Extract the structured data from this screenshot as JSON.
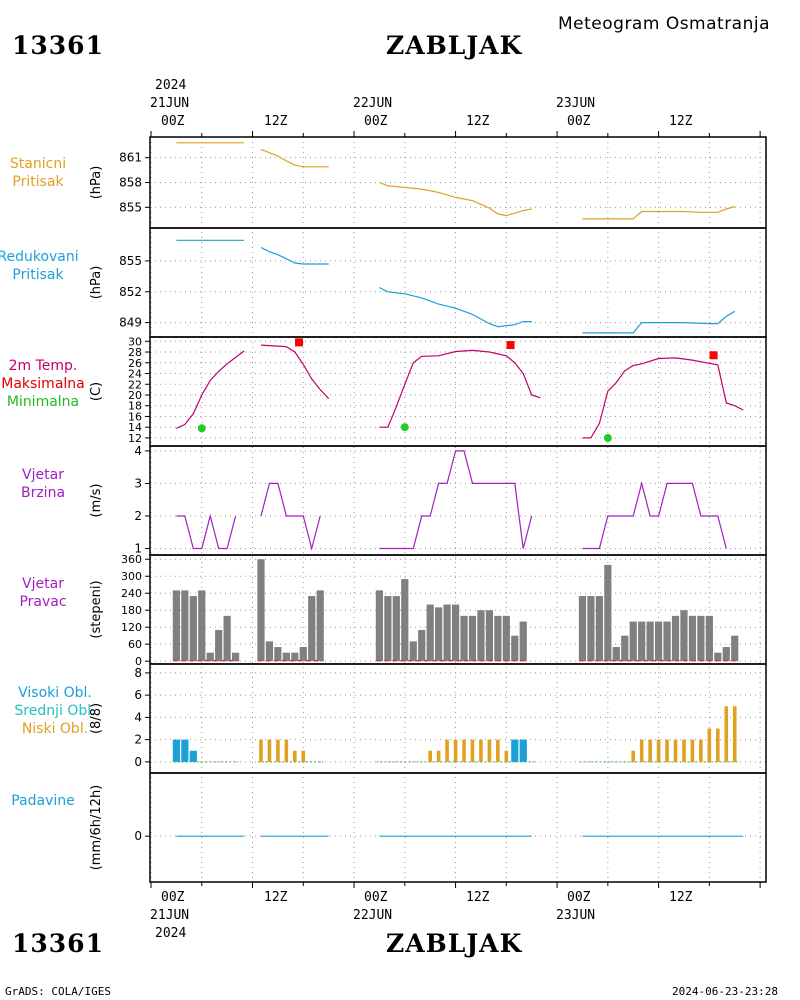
{
  "header": {
    "station_id": "13361",
    "station_name": "ZABLJAK",
    "subtitle": "Meteogram Osmatranja"
  },
  "footer": {
    "station_id": "13361",
    "station_name": "ZABLJAK",
    "credit": "GrADS: COLA/IGES",
    "timestamp": "2024-06-23-23:28"
  },
  "time_axis": {
    "year": "2024",
    "day_labels": [
      "21JUN",
      "22JUN",
      "23JUN"
    ],
    "hour_labels": [
      "00Z",
      "12Z",
      "00Z",
      "12Z",
      "00Z",
      "12Z"
    ]
  },
  "panels": {
    "pressure": {
      "label_1": "Stanicni",
      "label_2": "Pritisak",
      "unit": "(hPa)",
      "color": "#e0a020"
    },
    "red_pressure": {
      "label_1": "Redukovani",
      "label_2": "Pritisak",
      "unit": "(hPa)",
      "color": "#1ca0d8"
    },
    "temp": {
      "label_1": "2m Temp.",
      "label_2": "Maksimalna",
      "label_3": "Minimalna",
      "unit": "(C)",
      "color": "#c0006a",
      "max_color": "#ff0000",
      "min_color": "#22cc22"
    },
    "wind_speed": {
      "label_1": "Vjetar",
      "label_2": "Brzina",
      "unit": "(m/s)",
      "color": "#a020c0"
    },
    "wind_dir": {
      "label_1": "Vjetar",
      "label_2": "Pravac",
      "unit": "(stepeni)",
      "color": "#a020c0",
      "bar_color": "#808080"
    },
    "clouds": {
      "label_1": "Visoki Obl.",
      "label_2": "Srednji Obl.",
      "label_3": "Niski Obl.",
      "unit": "(8/8)",
      "high_color": "#1ca0d8",
      "mid_color": "#20c0c0",
      "low_color": "#e0a020"
    },
    "precip": {
      "label_1": "Padavine",
      "unit": "(mm/6h/12h)",
      "color": "#1ca0d8"
    }
  },
  "chart_data": [
    {
      "type": "line",
      "panel": "pressure",
      "ylabel": "(hPa)",
      "ylim": [
        852.5,
        863.5
      ],
      "yticks": [
        855,
        858,
        861
      ],
      "grid": true,
      "x_unit": "hours since 21JUN 00Z",
      "segments": [
        [
          [
            3,
            862.8
          ],
          [
            11,
            862.8
          ]
        ],
        [
          [
            13,
            862.0
          ],
          [
            14,
            861.6
          ],
          [
            15,
            861.2
          ],
          [
            16,
            860.6
          ],
          [
            17,
            860.1
          ],
          [
            18,
            859.9
          ],
          [
            20,
            859.9
          ],
          [
            21,
            859.9
          ]
        ],
        [
          [
            27,
            858.0
          ],
          [
            28,
            857.6
          ],
          [
            30,
            857.4
          ],
          [
            32,
            857.2
          ],
          [
            34,
            856.8
          ],
          [
            36,
            856.2
          ],
          [
            38,
            855.8
          ],
          [
            40,
            854.9
          ],
          [
            41,
            854.2
          ],
          [
            42,
            854.0
          ],
          [
            44,
            854.6
          ],
          [
            45,
            854.8
          ]
        ],
        [
          [
            51,
            853.6
          ],
          [
            57,
            853.6
          ],
          [
            58,
            854.5
          ],
          [
            63,
            854.5
          ],
          [
            65,
            854.4
          ],
          [
            67,
            854.4
          ],
          [
            68,
            854.8
          ],
          [
            69,
            855.1
          ]
        ]
      ]
    },
    {
      "type": "line",
      "panel": "red_pressure",
      "ylabel": "(hPa)",
      "ylim": [
        847.6,
        858.2
      ],
      "yticks": [
        849,
        852,
        855
      ],
      "grid": true,
      "x_unit": "hours since 21JUN 00Z",
      "segments": [
        [
          [
            3,
            857.0
          ],
          [
            11,
            857.0
          ]
        ],
        [
          [
            13,
            856.3
          ],
          [
            14,
            855.9
          ],
          [
            15,
            855.6
          ],
          [
            16,
            855.2
          ],
          [
            17,
            854.8
          ],
          [
            18,
            854.7
          ],
          [
            20,
            854.7
          ],
          [
            21,
            854.7
          ]
        ],
        [
          [
            27,
            852.4
          ],
          [
            28,
            852.0
          ],
          [
            30,
            851.8
          ],
          [
            32,
            851.4
          ],
          [
            34,
            850.8
          ],
          [
            36,
            850.4
          ],
          [
            38,
            849.8
          ],
          [
            40,
            848.9
          ],
          [
            41,
            848.6
          ],
          [
            43,
            848.8
          ],
          [
            44,
            849.1
          ],
          [
            45,
            849.1
          ]
        ],
        [
          [
            51,
            848.0
          ],
          [
            57,
            848.0
          ],
          [
            58,
            849.0
          ],
          [
            63,
            849.0
          ],
          [
            66,
            848.9
          ],
          [
            67,
            848.9
          ],
          [
            68,
            849.6
          ],
          [
            69,
            850.1
          ]
        ]
      ]
    },
    {
      "type": "line",
      "panel": "temp",
      "ylabel": "(C)",
      "ylim": [
        10.5,
        30.8
      ],
      "yticks": [
        12,
        14,
        16,
        18,
        20,
        22,
        24,
        26,
        28,
        30
      ],
      "grid": true,
      "x_unit": "hours since 21JUN 00Z",
      "segments": [
        [
          [
            3,
            13.8
          ],
          [
            4,
            14.5
          ],
          [
            5,
            16.5
          ],
          [
            6,
            20.0
          ],
          [
            7,
            22.7
          ],
          [
            8,
            24.4
          ],
          [
            9,
            25.8
          ],
          [
            10,
            27.0
          ],
          [
            11,
            28.2
          ]
        ],
        [
          [
            13,
            29.3
          ],
          [
            15,
            29.1
          ],
          [
            16,
            29.0
          ],
          [
            17,
            28.0
          ],
          [
            18,
            25.7
          ],
          [
            19,
            23.0
          ],
          [
            20,
            21.0
          ],
          [
            21,
            19.3
          ]
        ],
        [
          [
            27,
            14.0
          ],
          [
            28,
            14.0
          ],
          [
            29,
            17.8
          ],
          [
            30,
            22.0
          ],
          [
            31,
            26.0
          ],
          [
            32,
            27.2
          ],
          [
            34,
            27.3
          ],
          [
            36,
            28.1
          ],
          [
            38,
            28.3
          ],
          [
            40,
            28.0
          ],
          [
            42,
            27.3
          ],
          [
            43,
            26.0
          ],
          [
            44,
            24.0
          ],
          [
            45,
            20.0
          ],
          [
            46,
            19.5
          ]
        ],
        [
          [
            51,
            12.0
          ],
          [
            52,
            12.0
          ],
          [
            53,
            14.7
          ],
          [
            54,
            20.7
          ],
          [
            55,
            22.3
          ],
          [
            56,
            24.5
          ],
          [
            57,
            25.5
          ],
          [
            58,
            25.8
          ],
          [
            60,
            26.8
          ],
          [
            62,
            26.9
          ],
          [
            64,
            26.5
          ],
          [
            66,
            25.9
          ],
          [
            67,
            25.6
          ],
          [
            68,
            18.5
          ],
          [
            69,
            18.0
          ],
          [
            70,
            17.2
          ]
        ]
      ],
      "max_markers": [
        [
          17.5,
          29.8
        ],
        [
          42.5,
          29.3
        ],
        [
          66.5,
          27.4
        ]
      ],
      "min_markers": [
        [
          6,
          13.8
        ],
        [
          30,
          14.0
        ],
        [
          54,
          12.0
        ]
      ]
    },
    {
      "type": "line",
      "panel": "wind_speed",
      "ylabel": "(m/s)",
      "ylim": [
        0.8,
        4.15
      ],
      "yticks": [
        1,
        2,
        3,
        4
      ],
      "grid": true,
      "x_unit": "hours since 21JUN 00Z",
      "segments": [
        [
          [
            3,
            2
          ],
          [
            4,
            2
          ],
          [
            5,
            1
          ],
          [
            6,
            1
          ],
          [
            7,
            2
          ],
          [
            8,
            1
          ],
          [
            9,
            1
          ],
          [
            10,
            2
          ]
        ],
        [
          [
            13,
            2
          ],
          [
            14,
            3
          ],
          [
            15,
            3
          ],
          [
            16,
            2
          ],
          [
            17,
            2
          ],
          [
            18,
            2
          ],
          [
            19,
            1
          ],
          [
            20,
            2
          ]
        ],
        [
          [
            27,
            1
          ],
          [
            28,
            1
          ],
          [
            29,
            1
          ],
          [
            30,
            1
          ],
          [
            31,
            1
          ],
          [
            32,
            2
          ],
          [
            33,
            2
          ],
          [
            34,
            3
          ],
          [
            35,
            3
          ],
          [
            36,
            4
          ],
          [
            37,
            4
          ],
          [
            38,
            3
          ],
          [
            39,
            3
          ],
          [
            40,
            3
          ],
          [
            41,
            3
          ],
          [
            42,
            3
          ],
          [
            43,
            3
          ],
          [
            44,
            1
          ],
          [
            45,
            2
          ]
        ],
        [
          [
            51,
            1
          ],
          [
            52,
            1
          ],
          [
            53,
            1
          ],
          [
            54,
            2
          ],
          [
            55,
            2
          ],
          [
            56,
            2
          ],
          [
            57,
            2
          ],
          [
            58,
            3
          ],
          [
            59,
            2
          ],
          [
            60,
            2
          ],
          [
            61,
            3
          ],
          [
            62,
            3
          ],
          [
            63,
            3
          ],
          [
            64,
            3
          ],
          [
            65,
            2
          ],
          [
            66,
            2
          ],
          [
            67,
            2
          ],
          [
            68,
            1
          ]
        ]
      ]
    },
    {
      "type": "bar",
      "panel": "wind_dir",
      "ylabel": "(stepeni)",
      "ylim": [
        -10,
        375
      ],
      "yticks": [
        0,
        60,
        120,
        180,
        240,
        300,
        360
      ],
      "grid": true,
      "x_unit": "hours since 21JUN 00Z",
      "bars": [
        [
          3,
          250
        ],
        [
          4,
          250
        ],
        [
          5,
          230
        ],
        [
          6,
          250
        ],
        [
          7,
          30
        ],
        [
          8,
          110
        ],
        [
          9,
          160
        ],
        [
          10,
          30
        ],
        [
          13,
          360
        ],
        [
          14,
          70
        ],
        [
          15,
          50
        ],
        [
          16,
          30
        ],
        [
          17,
          30
        ],
        [
          18,
          50
        ],
        [
          19,
          230
        ],
        [
          20,
          250
        ],
        [
          27,
          250
        ],
        [
          28,
          230
        ],
        [
          29,
          230
        ],
        [
          30,
          290
        ],
        [
          31,
          70
        ],
        [
          32,
          110
        ],
        [
          33,
          200
        ],
        [
          34,
          190
        ],
        [
          35,
          200
        ],
        [
          36,
          200
        ],
        [
          37,
          160
        ],
        [
          38,
          160
        ],
        [
          39,
          180
        ],
        [
          40,
          180
        ],
        [
          41,
          160
        ],
        [
          42,
          160
        ],
        [
          43,
          90
        ],
        [
          44,
          140
        ],
        [
          51,
          230
        ],
        [
          52,
          230
        ],
        [
          53,
          230
        ],
        [
          54,
          340
        ],
        [
          55,
          50
        ],
        [
          56,
          90
        ],
        [
          57,
          140
        ],
        [
          58,
          140
        ],
        [
          59,
          140
        ],
        [
          60,
          140
        ],
        [
          61,
          140
        ],
        [
          62,
          160
        ],
        [
          63,
          180
        ],
        [
          64,
          160
        ],
        [
          65,
          160
        ],
        [
          66,
          160
        ],
        [
          67,
          30
        ],
        [
          68,
          50
        ],
        [
          69,
          90
        ]
      ]
    },
    {
      "type": "bar",
      "panel": "clouds",
      "ylabel": "(8/8)",
      "ylim": [
        -1,
        8.8
      ],
      "yticks": [
        0,
        2,
        4,
        6,
        8
      ],
      "grid": true,
      "x_unit": "hours since 21JUN 00Z",
      "high": [
        [
          3,
          2
        ],
        [
          4,
          2
        ],
        [
          5,
          1
        ],
        [
          43,
          2
        ],
        [
          44,
          2
        ]
      ],
      "low": [
        [
          13,
          2
        ],
        [
          14,
          2
        ],
        [
          15,
          2
        ],
        [
          16,
          2
        ],
        [
          17,
          1
        ],
        [
          18,
          1
        ],
        [
          33,
          1
        ],
        [
          34,
          1
        ],
        [
          35,
          2
        ],
        [
          36,
          2
        ],
        [
          37,
          2
        ],
        [
          38,
          2
        ],
        [
          39,
          2
        ],
        [
          40,
          2
        ],
        [
          41,
          2
        ],
        [
          42,
          1
        ],
        [
          57,
          1
        ],
        [
          58,
          2
        ],
        [
          59,
          2
        ],
        [
          60,
          2
        ],
        [
          61,
          2
        ],
        [
          62,
          2
        ],
        [
          63,
          2
        ],
        [
          64,
          2
        ],
        [
          65,
          2
        ],
        [
          66,
          3
        ],
        [
          67,
          3
        ],
        [
          68,
          5
        ],
        [
          69,
          5
        ]
      ]
    },
    {
      "type": "line",
      "panel": "precip",
      "ylabel": "(mm/6h/12h)",
      "ylim": [
        -4.5,
        6.2
      ],
      "yticks": [
        0
      ],
      "grid": true,
      "x_unit": "hours since 21JUN 00Z",
      "segments": [
        [
          [
            3,
            0
          ],
          [
            11,
            0
          ]
        ],
        [
          [
            13,
            0
          ],
          [
            21,
            0
          ]
        ],
        [
          [
            27,
            0
          ],
          [
            45,
            0
          ]
        ],
        [
          [
            51,
            0
          ],
          [
            70,
            0
          ]
        ]
      ]
    }
  ]
}
